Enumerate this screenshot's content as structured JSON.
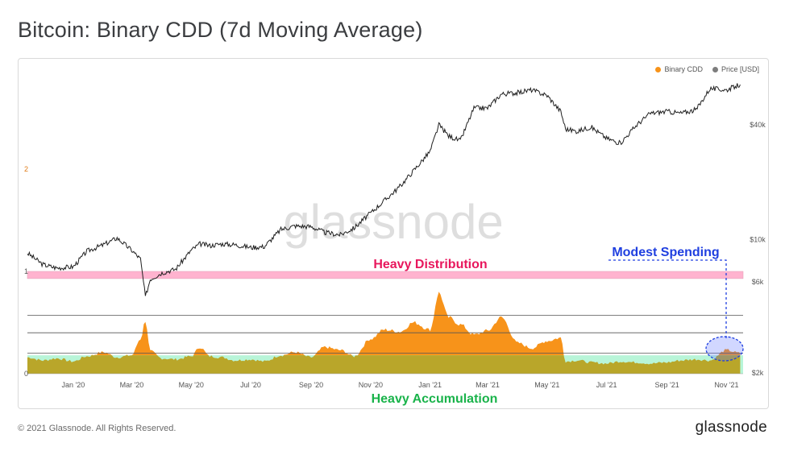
{
  "title": "Bitcoin: Binary CDD (7d Moving Average)",
  "legend": [
    {
      "label": "Binary CDD",
      "color": "#f7931a"
    },
    {
      "label": "Price [USD]",
      "color": "#7d7d7d"
    }
  ],
  "watermark": "glassnode",
  "annotations": {
    "heavy_distribution": "Heavy Distribution",
    "heavy_accumulation": "Heavy Accumulation",
    "modest_spending": "Modest Spending"
  },
  "footer": {
    "copyright": "© 2021 Glassnode. All Rights Reserved.",
    "logo": "glassnode"
  },
  "colors": {
    "cdd_high": "#f7931a",
    "cdd_low": "#b9a62a",
    "price": "#1f1f1f",
    "distribution_band": "#ffb3cf",
    "accumulation_band": "#b8f5d8",
    "distribution_text": "#e8175d",
    "accumulation_text": "#19b34a",
    "modest_text": "#1f3fe0"
  },
  "chart_data": {
    "type": "area",
    "x_ticks": [
      "Jan '20",
      "Mar '20",
      "May '20",
      "Jul '20",
      "Sep '20",
      "Nov '20",
      "Jan '21",
      "Mar '21",
      "May '21",
      "Jul '21",
      "Sep '21",
      "Nov '21"
    ],
    "left_axis": {
      "ticks": [
        "0",
        "1",
        "2"
      ],
      "ylim": [
        0,
        2
      ]
    },
    "right_axis": {
      "scale": "log",
      "ticks": [
        "$2k",
        "$6k",
        "$10k",
        "$40k"
      ]
    },
    "bands": {
      "heavy_distribution": [
        0.93,
        1.0
      ],
      "heavy_accumulation": [
        0,
        0.18
      ]
    },
    "reference_lines": [
      0.2,
      0.4,
      0.57
    ],
    "series": [
      {
        "name": "Binary CDD",
        "x": [
          "2019-11-15",
          "2019-12-01",
          "2019-12-15",
          "2020-01-01",
          "2020-01-15",
          "2020-02-01",
          "2020-02-15",
          "2020-03-01",
          "2020-03-10",
          "2020-03-15",
          "2020-03-20",
          "2020-04-01",
          "2020-04-15",
          "2020-05-01",
          "2020-05-10",
          "2020-05-20",
          "2020-06-01",
          "2020-06-15",
          "2020-07-01",
          "2020-07-15",
          "2020-08-01",
          "2020-08-15",
          "2020-09-01",
          "2020-09-15",
          "2020-10-01",
          "2020-10-15",
          "2020-11-01",
          "2020-11-15",
          "2020-12-01",
          "2020-12-15",
          "2021-01-01",
          "2021-01-10",
          "2021-01-20",
          "2021-02-01",
          "2021-02-15",
          "2021-03-01",
          "2021-03-15",
          "2021-04-01",
          "2021-04-15",
          "2021-05-01",
          "2021-05-15",
          "2021-05-20",
          "2021-06-01",
          "2021-06-15",
          "2021-07-01",
          "2021-07-15",
          "2021-08-01",
          "2021-08-15",
          "2021-09-01",
          "2021-09-15",
          "2021-10-01",
          "2021-10-15",
          "2021-11-01",
          "2021-11-15"
        ],
        "values": [
          0.16,
          0.13,
          0.15,
          0.12,
          0.17,
          0.21,
          0.16,
          0.18,
          0.34,
          0.52,
          0.22,
          0.15,
          0.14,
          0.17,
          0.26,
          0.17,
          0.16,
          0.13,
          0.14,
          0.12,
          0.18,
          0.21,
          0.16,
          0.26,
          0.23,
          0.17,
          0.34,
          0.43,
          0.41,
          0.5,
          0.43,
          0.79,
          0.55,
          0.48,
          0.38,
          0.42,
          0.55,
          0.3,
          0.25,
          0.32,
          0.35,
          0.12,
          0.13,
          0.11,
          0.1,
          0.12,
          0.11,
          0.1,
          0.11,
          0.13,
          0.14,
          0.13,
          0.23,
          0.2
        ]
      },
      {
        "name": "Price [USD]",
        "x": [
          "2019-11-15",
          "2019-12-01",
          "2019-12-15",
          "2020-01-01",
          "2020-01-15",
          "2020-02-01",
          "2020-02-15",
          "2020-03-01",
          "2020-03-10",
          "2020-03-15",
          "2020-03-20",
          "2020-04-01",
          "2020-04-15",
          "2020-05-01",
          "2020-05-10",
          "2020-05-20",
          "2020-06-01",
          "2020-06-15",
          "2020-07-01",
          "2020-07-15",
          "2020-08-01",
          "2020-08-15",
          "2020-09-01",
          "2020-09-15",
          "2020-10-01",
          "2020-10-15",
          "2020-11-01",
          "2020-11-15",
          "2020-12-01",
          "2020-12-15",
          "2021-01-01",
          "2021-01-10",
          "2021-01-20",
          "2021-02-01",
          "2021-02-15",
          "2021-03-01",
          "2021-03-15",
          "2021-04-01",
          "2021-04-15",
          "2021-05-01",
          "2021-05-15",
          "2021-05-20",
          "2021-06-01",
          "2021-06-15",
          "2021-07-01",
          "2021-07-15",
          "2021-08-01",
          "2021-08-15",
          "2021-09-01",
          "2021-09-15",
          "2021-10-01",
          "2021-10-15",
          "2021-11-01",
          "2021-11-15"
        ],
        "values": [
          8500,
          7400,
          7100,
          7200,
          8700,
          9400,
          10200,
          8800,
          7900,
          5000,
          6200,
          6700,
          7000,
          8800,
          9500,
          9300,
          9500,
          9400,
          9100,
          9200,
          11300,
          11800,
          11700,
          10900,
          10600,
          11500,
          13800,
          16000,
          19000,
          23000,
          29000,
          40000,
          35000,
          33000,
          49000,
          49000,
          58000,
          59000,
          61000,
          57000,
          47000,
          38000,
          37000,
          39000,
          34000,
          32000,
          40000,
          46000,
          47000,
          46000,
          48000,
          62000,
          61000,
          65000
        ]
      }
    ]
  }
}
